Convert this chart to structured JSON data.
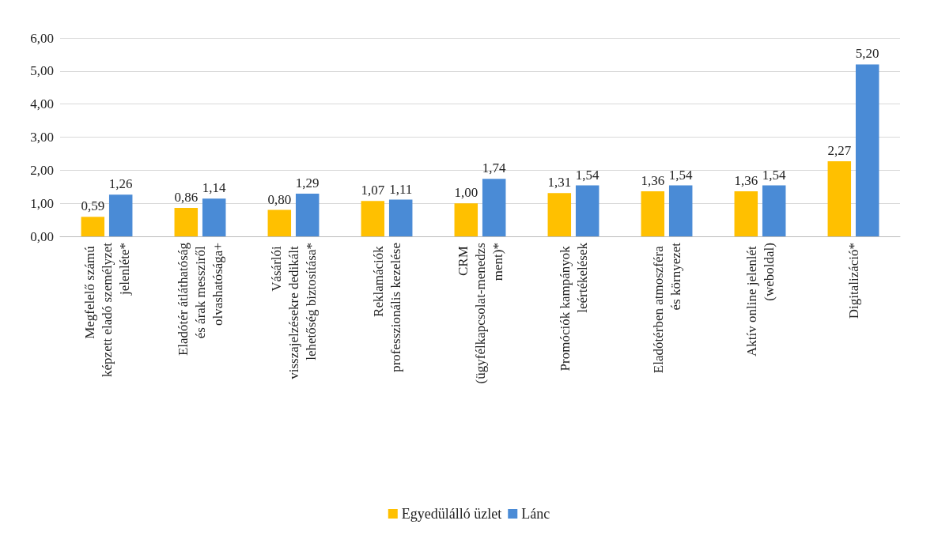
{
  "chart_data": {
    "type": "bar",
    "categories": [
      "Megfelelő számú képzett eladó személyzet jelenléte*",
      "Eladótér átláthatóság és árak messziről olvashatósága+",
      "Vásárlói visszajelzésekre dedikált lehetőség biztosítása*",
      "Reklamációk professzionális kezelése",
      "CRM (ügyfélkapcsolat-menedzsment)*",
      "Promóciók kampányok leértékelések",
      "Eladótérben atmoszféra és környezet",
      "Aktív online jelenlét (weboldal)",
      "Digitalizáció*"
    ],
    "series": [
      {
        "name": "Egyedülálló üzlet",
        "color": "#ffc000",
        "values": [
          0.59,
          0.86,
          0.8,
          1.07,
          1.0,
          1.31,
          1.36,
          1.36,
          2.27
        ],
        "value_labels": [
          "0,59",
          "0,86",
          "0,80",
          "1,07",
          "1,00",
          "1,31",
          "1,36",
          "1,36",
          "2,27"
        ]
      },
      {
        "name": "Lánc",
        "color": "#4a8bd6",
        "values": [
          1.26,
          1.14,
          1.29,
          1.11,
          1.74,
          1.54,
          1.54,
          1.54,
          5.2
        ],
        "value_labels": [
          "1,26",
          "1,14",
          "1,29",
          "1,11",
          "1,74",
          "1,54",
          "1,54",
          "1,54",
          "5,20"
        ]
      }
    ],
    "ylim": [
      0,
      6
    ],
    "yticks": [
      {
        "value": 0,
        "label": "0,00"
      },
      {
        "value": 1,
        "label": "1,00"
      },
      {
        "value": 2,
        "label": "2,00"
      },
      {
        "value": 3,
        "label": "3,00"
      },
      {
        "value": 4,
        "label": "4,00"
      },
      {
        "value": 5,
        "label": "5,00"
      },
      {
        "value": 6,
        "label": "6,00"
      }
    ],
    "grid": "y",
    "legend": "bottom"
  }
}
